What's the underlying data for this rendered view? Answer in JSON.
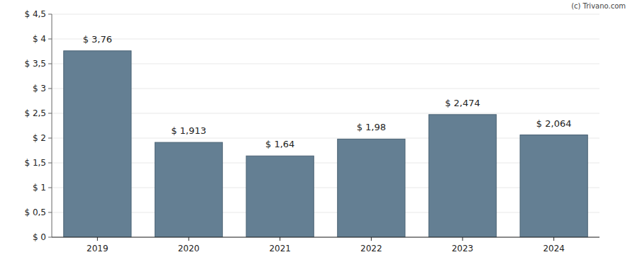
{
  "chart_data": {
    "type": "bar",
    "annotation": "(c) Trivano.com",
    "categories": [
      "2019",
      "2020",
      "2021",
      "2022",
      "2023",
      "2024"
    ],
    "values": [
      3.76,
      1.913,
      1.64,
      1.98,
      2.474,
      2.064
    ],
    "value_labels": [
      "$ 3,76",
      "$ 1,913",
      "$ 1,64",
      "$ 1,98",
      "$ 2,474",
      "$ 2,064"
    ],
    "color": "#647f93",
    "ylim": [
      0,
      4.5
    ],
    "yticks": [
      {
        "value": 0,
        "label": "$ 0"
      },
      {
        "value": 0.5,
        "label": "$ 0,5"
      },
      {
        "value": 1,
        "label": "$ 1"
      },
      {
        "value": 1.5,
        "label": "$ 1,5"
      },
      {
        "value": 2,
        "label": "$ 2"
      },
      {
        "value": 2.5,
        "label": "$ 2,5"
      },
      {
        "value": 3,
        "label": "$ 3"
      },
      {
        "value": 3.5,
        "label": "$ 3,5"
      },
      {
        "value": 4,
        "label": "$ 4"
      },
      {
        "value": 4.5,
        "label": "$ 4,5"
      }
    ],
    "grid": true,
    "data_labels": true
  }
}
